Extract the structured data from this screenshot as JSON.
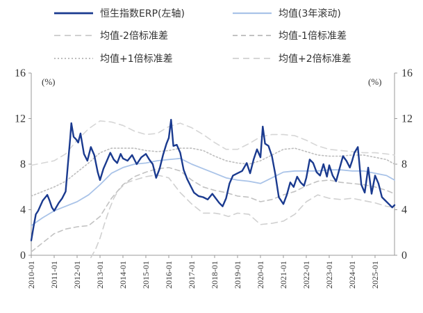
{
  "chart_data": {
    "type": "line",
    "title": "",
    "y_unit_left": "(%)",
    "y_unit_right": "(%)",
    "ylim": [
      0,
      16
    ],
    "yticks": [
      "0",
      "4",
      "8",
      "12",
      "16"
    ],
    "x_range": [
      2010.0,
      2025.85
    ],
    "xticks": [
      "2010-01",
      "2011-01",
      "2012-01",
      "2013-01",
      "2014-01",
      "2015-01",
      "2016-01",
      "2017-01",
      "2018-01",
      "2019-01",
      "2020-01",
      "2021-01",
      "2022-01",
      "2023-01",
      "2024-01",
      "2025-01"
    ],
    "series": [
      {
        "name": "恒生指数ERP(左轴)",
        "style": "solid-thick",
        "color": "#1a3a8f",
        "x": [
          2010.0,
          2010.1,
          2010.2,
          2010.3,
          2010.5,
          2010.7,
          2010.8,
          2010.9,
          2011.0,
          2011.2,
          2011.35,
          2011.5,
          2011.6,
          2011.7,
          2011.75,
          2011.85,
          2011.95,
          2012.05,
          2012.15,
          2012.3,
          2012.45,
          2012.6,
          2012.75,
          2012.9,
          2013.0,
          2013.15,
          2013.3,
          2013.45,
          2013.6,
          2013.75,
          2013.9,
          2014.0,
          2014.2,
          2014.4,
          2014.6,
          2014.8,
          2015.0,
          2015.15,
          2015.3,
          2015.45,
          2015.6,
          2015.75,
          2015.9,
          2016.0,
          2016.1,
          2016.2,
          2016.35,
          2016.5,
          2016.65,
          2016.8,
          2016.95,
          2017.1,
          2017.3,
          2017.5,
          2017.7,
          2017.9,
          2018.05,
          2018.2,
          2018.35,
          2018.5,
          2018.65,
          2018.8,
          2019.0,
          2019.2,
          2019.4,
          2019.55,
          2019.7,
          2019.85,
          2020.0,
          2020.1,
          2020.2,
          2020.35,
          2020.5,
          2020.65,
          2020.8,
          2021.0,
          2021.15,
          2021.3,
          2021.45,
          2021.6,
          2021.75,
          2021.9,
          2022.0,
          2022.15,
          2022.3,
          2022.45,
          2022.6,
          2022.75,
          2022.9,
          2023.0,
          2023.15,
          2023.3,
          2023.45,
          2023.6,
          2023.75,
          2023.9,
          2024.0,
          2024.1,
          2024.25,
          2024.4,
          2024.55,
          2024.7,
          2024.85,
          2025.0,
          2025.15,
          2025.3,
          2025.45,
          2025.6,
          2025.75,
          2025.85
        ],
        "values": [
          1.3,
          2.5,
          3.6,
          3.9,
          4.8,
          5.3,
          4.8,
          4.2,
          3.9,
          4.6,
          5.0,
          5.6,
          8.0,
          10.3,
          11.6,
          10.4,
          10.2,
          9.9,
          10.7,
          8.9,
          8.3,
          9.5,
          8.8,
          7.3,
          6.6,
          7.6,
          8.3,
          9.0,
          8.4,
          8.1,
          8.9,
          8.5,
          8.3,
          8.8,
          8.0,
          8.6,
          8.9,
          8.4,
          8.0,
          6.8,
          7.6,
          8.8,
          9.8,
          10.3,
          11.9,
          9.6,
          9.7,
          9.0,
          7.5,
          6.7,
          6.1,
          5.5,
          5.2,
          5.1,
          4.9,
          5.4,
          5.0,
          4.6,
          4.3,
          5.0,
          6.3,
          7.0,
          7.2,
          7.4,
          8.1,
          7.2,
          8.4,
          9.3,
          8.6,
          11.3,
          9.8,
          9.6,
          8.7,
          7.1,
          5.1,
          4.5,
          5.3,
          6.4,
          6.0,
          6.9,
          6.4,
          6.1,
          6.8,
          8.4,
          8.1,
          7.3,
          7.0,
          8.0,
          6.9,
          7.9,
          7.0,
          6.5,
          7.6,
          8.7,
          8.3,
          7.7,
          8.3,
          9.0,
          9.5,
          6.2,
          5.5,
          7.7,
          5.4,
          7.0,
          6.3,
          5.1,
          4.8,
          4.5,
          4.2,
          4.4
        ]
      },
      {
        "name": "均值(3年滚动)",
        "style": "solid-thin",
        "color": "#a9c3e8",
        "x": [
          2010.0,
          2010.5,
          2011.0,
          2011.5,
          2012.0,
          2012.5,
          2013.0,
          2013.5,
          2014.0,
          2014.5,
          2015.0,
          2015.5,
          2016.0,
          2016.5,
          2017.0,
          2017.5,
          2018.0,
          2018.5,
          2019.0,
          2019.5,
          2020.0,
          2020.5,
          2021.0,
          2021.5,
          2022.0,
          2022.5,
          2023.0,
          2023.5,
          2024.0,
          2024.5,
          2025.0,
          2025.5,
          2025.85
        ],
        "values": [
          2.6,
          3.3,
          3.9,
          4.3,
          4.7,
          5.3,
          6.2,
          7.2,
          7.7,
          8.0,
          8.1,
          8.3,
          8.4,
          8.5,
          8.0,
          7.6,
          7.2,
          6.8,
          6.6,
          6.5,
          6.3,
          6.8,
          7.3,
          7.4,
          7.4,
          7.4,
          7.5,
          7.5,
          7.4,
          7.4,
          7.2,
          7.0,
          6.6
        ]
      },
      {
        "name": "均值-2倍标准差",
        "style": "dashed-light",
        "color": "#d0d0d0",
        "x": [
          2012.6,
          2012.8,
          2013.0,
          2013.2,
          2013.4,
          2013.6,
          2013.8,
          2014.0,
          2014.2,
          2014.5,
          2015.0,
          2015.3,
          2015.6,
          2016.0,
          2016.5,
          2017.0,
          2017.5,
          2018.0,
          2018.3,
          2018.6,
          2019.0,
          2019.5,
          2020.0,
          2020.5,
          2021.0,
          2021.5,
          2022.0,
          2022.5,
          2023.0,
          2023.5,
          2024.0,
          2024.5,
          2025.0,
          2025.5,
          2025.85
        ],
        "values": [
          -0.2,
          0.5,
          1.5,
          2.8,
          4.0,
          5.0,
          5.7,
          6.1,
          6.4,
          6.6,
          6.9,
          7.0,
          7.0,
          6.8,
          5.5,
          4.5,
          3.7,
          3.7,
          3.6,
          3.4,
          3.7,
          3.6,
          2.7,
          2.8,
          3.0,
          3.6,
          4.7,
          5.3,
          5.0,
          4.9,
          5.0,
          4.8,
          4.6,
          4.3,
          4.2
        ]
      },
      {
        "name": "均值-1倍标准差",
        "style": "dashed-medium",
        "color": "#c2c2c2",
        "x": [
          2010.0,
          2010.5,
          2011.0,
          2011.5,
          2012.0,
          2012.5,
          2013.0,
          2013.5,
          2014.0,
          2014.5,
          2015.0,
          2015.5,
          2016.0,
          2016.5,
          2017.0,
          2017.5,
          2018.0,
          2018.5,
          2019.0,
          2019.5,
          2020.0,
          2020.5,
          2021.0,
          2021.5,
          2022.0,
          2022.5,
          2023.0,
          2023.5,
          2024.0,
          2024.5,
          2025.0,
          2025.5,
          2025.85
        ],
        "values": [
          0.3,
          1.1,
          1.9,
          2.3,
          2.5,
          2.6,
          3.4,
          5.0,
          6.2,
          6.9,
          7.3,
          7.6,
          7.7,
          7.4,
          6.6,
          6.0,
          5.7,
          5.5,
          5.2,
          5.1,
          4.7,
          4.9,
          5.3,
          5.6,
          6.1,
          6.5,
          6.6,
          6.4,
          6.3,
          6.2,
          6.0,
          5.7,
          5.4
        ]
      },
      {
        "name": "均值+1倍标准差",
        "style": "dotted",
        "color": "#bdbdbd",
        "x": [
          2010.0,
          2010.5,
          2011.0,
          2011.5,
          2012.0,
          2012.5,
          2013.0,
          2013.5,
          2014.0,
          2014.5,
          2015.0,
          2015.5,
          2016.0,
          2016.5,
          2017.0,
          2017.5,
          2018.0,
          2018.5,
          2019.0,
          2019.5,
          2020.0,
          2020.5,
          2021.0,
          2021.5,
          2022.0,
          2022.5,
          2023.0,
          2023.5,
          2024.0,
          2024.5,
          2025.0,
          2025.5,
          2025.85
        ],
        "values": [
          5.2,
          5.6,
          6.0,
          6.5,
          7.3,
          8.1,
          9.0,
          9.4,
          9.4,
          9.4,
          9.2,
          9.1,
          9.2,
          9.4,
          9.4,
          9.2,
          8.7,
          8.3,
          8.1,
          8.0,
          8.3,
          8.8,
          9.3,
          9.4,
          9.1,
          8.8,
          8.7,
          8.7,
          8.8,
          8.8,
          8.6,
          8.4,
          8.0
        ]
      },
      {
        "name": "均值+2倍标准差",
        "style": "dashed-light",
        "color": "#d6d6d6",
        "x": [
          2010.0,
          2010.5,
          2011.0,
          2011.5,
          2012.0,
          2012.5,
          2013.0,
          2013.5,
          2014.0,
          2014.5,
          2015.0,
          2015.5,
          2016.0,
          2016.5,
          2017.0,
          2017.5,
          2018.0,
          2018.5,
          2019.0,
          2019.5,
          2020.0,
          2020.5,
          2021.0,
          2021.5,
          2022.0,
          2022.5,
          2023.0,
          2023.5,
          2024.0,
          2024.5,
          2025.0,
          2025.5,
          2025.85
        ],
        "values": [
          7.9,
          8.1,
          8.3,
          8.9,
          10.1,
          11.1,
          11.8,
          11.7,
          11.4,
          10.9,
          10.6,
          10.7,
          11.3,
          11.6,
          11.2,
          10.6,
          9.9,
          9.3,
          9.3,
          9.8,
          10.4,
          10.6,
          10.6,
          10.5,
          10.1,
          9.6,
          9.3,
          9.2,
          9.1,
          9.0,
          9.0,
          8.9,
          8.8
        ]
      }
    ]
  }
}
